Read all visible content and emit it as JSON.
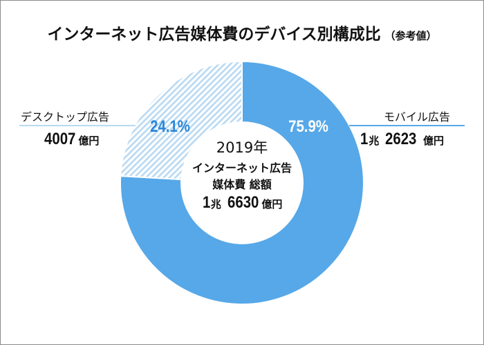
{
  "title": "インターネット広告媒体費のデバイス別構成比",
  "title_note": "（参考値）",
  "chart_data": {
    "type": "pie",
    "donut": true,
    "title": "インターネット広告媒体費のデバイス別構成比（参考値）",
    "categories": [
      "モバイル広告",
      "デスクトップ広告"
    ],
    "values": [
      75.9,
      24.1
    ],
    "value_labels": [
      "75.9%",
      "24.1%"
    ],
    "amounts": [
      {
        "trillion": "1",
        "trillion_unit": "兆",
        "number": "2623",
        "unit": "億円"
      },
      {
        "number": "4007",
        "unit": "億円"
      }
    ],
    "colors": [
      "#56a8e8",
      "#b8d9f3"
    ],
    "patterns": [
      "solid",
      "diagonal-hatch"
    ],
    "center": {
      "year": "2019年",
      "line1": "インターネット広告",
      "line2": "媒体費 総額",
      "trillion": "1",
      "trillion_unit": "兆",
      "number": "6630",
      "unit": "億円"
    }
  }
}
